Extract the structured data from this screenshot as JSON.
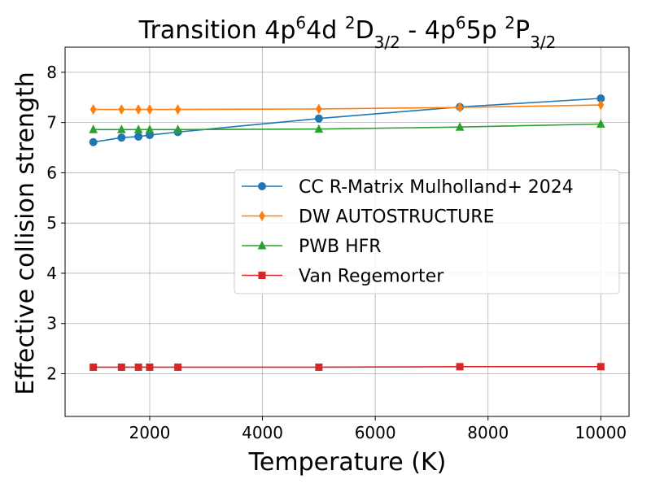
{
  "chart_data": {
    "type": "line",
    "title": {
      "prefix": "Transition 4p",
      "sup1": "6",
      "mid1": "4d ",
      "sup2": "2",
      "mid2": "D",
      "sub1": "3/2",
      "mid3": " - 4p",
      "sup3": "6",
      "mid4": "5p ",
      "sup4": "2",
      "mid5": "P",
      "sub2": "3/2"
    },
    "xlabel": "Temperature (K)",
    "ylabel": "Effective collision strength",
    "xlim": [
      500,
      10500
    ],
    "ylim": [
      1.15,
      8.5
    ],
    "xticks": [
      2000,
      4000,
      6000,
      8000,
      10000
    ],
    "xtick_labels": [
      "2000",
      "4000",
      "6000",
      "8000",
      "10000"
    ],
    "yticks": [
      2,
      3,
      4,
      5,
      6,
      7,
      8
    ],
    "ytick_labels": [
      "2",
      "3",
      "4",
      "5",
      "6",
      "7",
      "8"
    ],
    "grid": true,
    "legend_position": "center-right",
    "x": [
      1000,
      1500,
      1800,
      2000,
      2500,
      5000,
      7500,
      10000
    ],
    "series": [
      {
        "name": "CC R-Matrix Mulholland+ 2024",
        "color": "#1f77b4",
        "marker": "circle",
        "values": [
          6.61,
          6.7,
          6.72,
          6.75,
          6.81,
          7.08,
          7.31,
          7.48
        ]
      },
      {
        "name": "DW AUTOSTRUCTURE",
        "color": "#ff7f0e",
        "marker": "thin-diamond",
        "values": [
          7.26,
          7.26,
          7.26,
          7.26,
          7.26,
          7.27,
          7.3,
          7.35
        ]
      },
      {
        "name": "PWB HFR",
        "color": "#2ca02c",
        "marker": "triangle-up",
        "values": [
          6.86,
          6.86,
          6.86,
          6.86,
          6.86,
          6.87,
          6.91,
          6.97
        ]
      },
      {
        "name": "Van Regemorter",
        "color": "#d62728",
        "marker": "square",
        "values": [
          2.13,
          2.13,
          2.13,
          2.13,
          2.13,
          2.13,
          2.14,
          2.14
        ]
      }
    ]
  }
}
